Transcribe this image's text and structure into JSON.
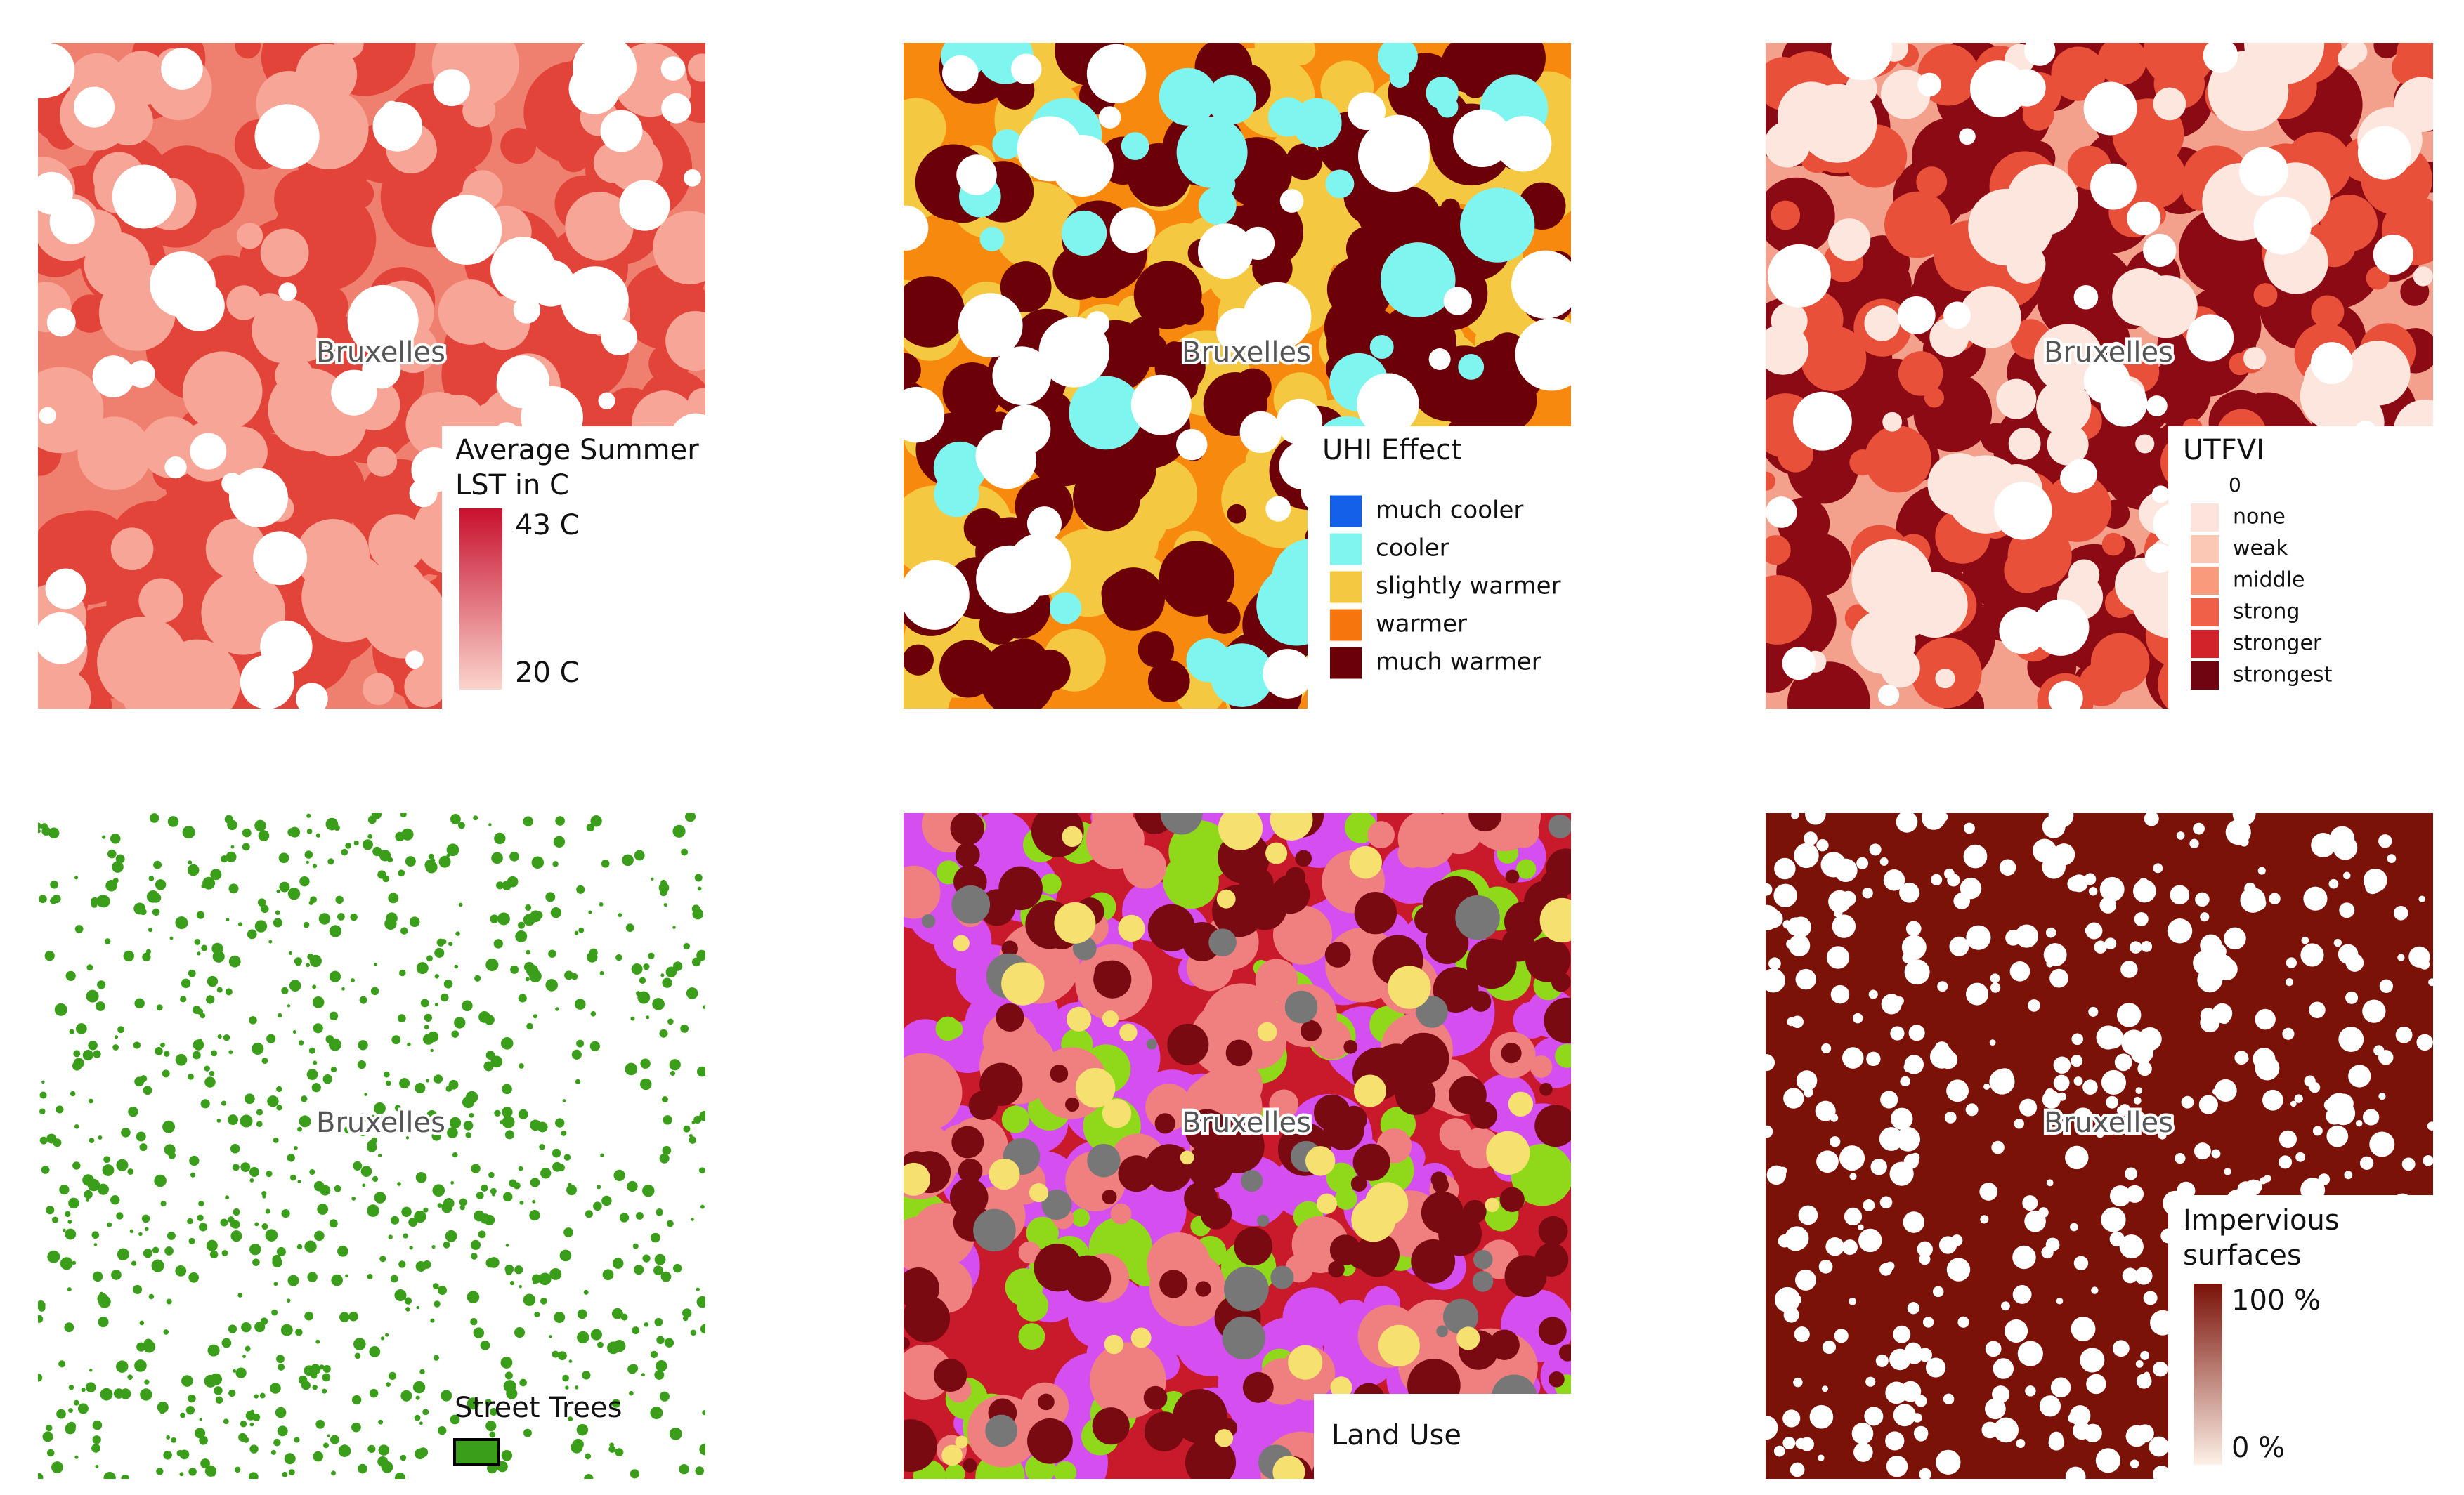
{
  "panels": [
    {
      "place_label": "Bruxelles",
      "legend": {
        "title_lines": [
          "Average Summer",
          "LST in C"
        ],
        "max_label": "43 C",
        "min_label": "20 C",
        "colors": [
          "#c8102e",
          "#fbd5cc"
        ]
      }
    },
    {
      "place_label": "Bruxelles",
      "legend": {
        "title_lines": [
          "UHI Effect"
        ],
        "items": [
          {
            "label": "much cooler",
            "color": "#1560e8"
          },
          {
            "label": "cooler",
            "color": "#7ff5f0"
          },
          {
            "label": "slightly warmer",
            "color": "#f5c842"
          },
          {
            "label": "warmer",
            "color": "#f7750d"
          },
          {
            "label": "much warmer",
            "color": "#6b0008"
          }
        ]
      }
    },
    {
      "place_label": "Bruxelles",
      "legend": {
        "title_lines": [
          "UTFVI"
        ],
        "zero_label": "0",
        "items": [
          {
            "label": "none",
            "color": "#fce4dc"
          },
          {
            "label": "weak",
            "color": "#fac8b4"
          },
          {
            "label": "middle",
            "color": "#f89a7c"
          },
          {
            "label": "strong",
            "color": "#f06048"
          },
          {
            "label": "stronger",
            "color": "#d3232a"
          },
          {
            "label": "strongest",
            "color": "#6e0510"
          }
        ]
      }
    },
    {
      "place_label": "Bruxelles",
      "legend": {
        "title_lines": [
          "Street Trees"
        ],
        "color": "#3a9e1a"
      }
    },
    {
      "place_label": "Bruxelles",
      "legend": {
        "title_lines": [
          "Land Use"
        ]
      }
    },
    {
      "place_label": "Bruxelles",
      "legend": {
        "title_lines": [
          "Impervious",
          "surfaces"
        ],
        "max_label": "100 %",
        "min_label": "0 %",
        "colors": [
          "#7a1208",
          "#fdf0e6"
        ]
      }
    }
  ]
}
